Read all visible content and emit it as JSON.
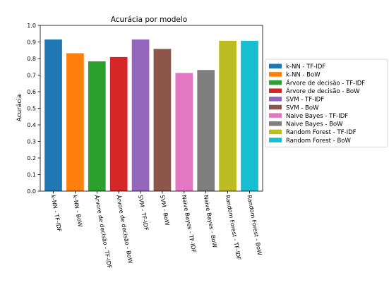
{
  "chart_data": {
    "type": "bar",
    "title": "Acurácia por modelo",
    "xlabel": "",
    "ylabel": "Acurácia",
    "ylim": [
      0,
      1.0
    ],
    "yticks": [
      0.0,
      0.1,
      0.2,
      0.3,
      0.4,
      0.5,
      0.6,
      0.7,
      0.8,
      0.9,
      1.0
    ],
    "ytick_labels": [
      "0.0",
      "0.1",
      "0.2",
      "0.3",
      "0.4",
      "0.5",
      "0.6",
      "0.7",
      "0.8",
      "0.9",
      "1.0"
    ],
    "grid": false,
    "legend_position": "right",
    "categories": [
      "k-NN - TF-IDF",
      "k-NN - BoW",
      "Árvore de decisão - TF-IDF",
      "Árvore de decisão - BoW",
      "SVM - TF-IDF",
      "SVM - BoW",
      "Naive Bayes - TF-IDF",
      "Naive Bayes - BoW",
      "Random Forest - TF-IDF",
      "Random Forest - BoW"
    ],
    "values": [
      0.915,
      0.832,
      0.783,
      0.809,
      0.915,
      0.858,
      0.713,
      0.731,
      0.907,
      0.907
    ],
    "colors": [
      "#1f77b4",
      "#ff7f0e",
      "#2ca02c",
      "#d62728",
      "#9467bd",
      "#8c564b",
      "#e377c2",
      "#7f7f7f",
      "#bcbd22",
      "#17becf"
    ]
  }
}
